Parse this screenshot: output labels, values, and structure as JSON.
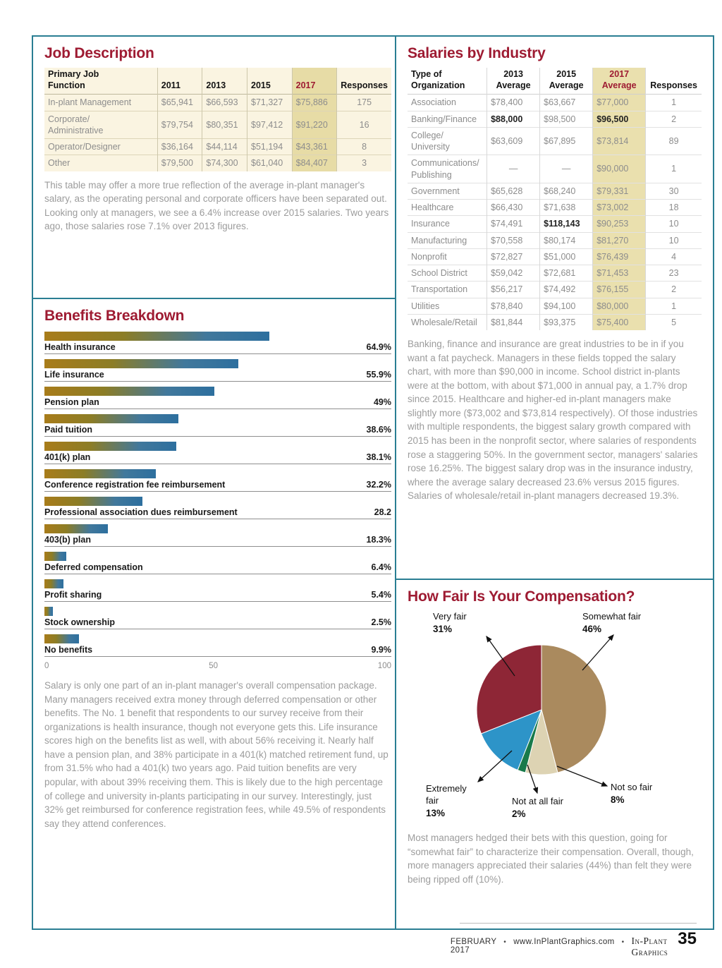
{
  "job_description": {
    "title": "Job Description",
    "table": {
      "headers": [
        "Primary Job\nFunction",
        "2011",
        "2013",
        "2015",
        "2017",
        "Responses"
      ],
      "highlight_column": "2017",
      "rows": [
        {
          "label": "In-plant Management",
          "values": [
            "$65,941",
            "$66,593",
            "$71,327",
            "$75,886",
            "175"
          ],
          "bold": []
        },
        {
          "label": "Corporate/\nAdministrative",
          "values": [
            "$79,754",
            "$80,351",
            "$97,412",
            "$91,220",
            "16"
          ],
          "bold": []
        },
        {
          "label": "Operator/Designer",
          "values": [
            "$36,164",
            "$44,114",
            "$51,194",
            "$43,361",
            "8"
          ],
          "bold": []
        },
        {
          "label": "Other",
          "values": [
            "$79,500",
            "$74,300",
            "$61,040",
            "$84,407",
            "3"
          ],
          "bold": []
        }
      ]
    },
    "caption": "This table may offer a more true reflection of the average in-plant manager's salary, as the operating personal and corporate officers have been separated out. Looking only at managers, we see a 6.4% increase over 2015 salaries. Two years ago, those salaries rose 7.1% over 2013 figures."
  },
  "benefits": {
    "title": "Benefits Breakdown",
    "caption": "Salary is only one part of an in-plant manager's overall compensation package. Many managers received extra money through deferred compensation or other benefits. The No. 1 benefit that respondents to our survey receive from their organizations is health insurance, though not everyone gets this. Life insurance scores high on the benefits list as well, with about 56% receiving it. Nearly half have a pension plan, and 38% participate in a 401(k) matched retirement fund, up from 31.5% who had a 401(k) two years ago. Paid tuition benefits are very popular, with about 39% receiving them. This is likely due to the high percentage of college and university in-plants participating in our survey. Interestingly, just 32% get reimbursed for conference registration fees, while 49.5% of respondents say they attend conferences."
  },
  "salaries": {
    "title": "Salaries by Industry",
    "table": {
      "headers": [
        "Type of\nOrganization",
        "2013\nAverage",
        "2015\nAverage",
        "2017\nAverage",
        "Responses"
      ],
      "highlight_column": "2017 Average",
      "rows": [
        {
          "label": "Association",
          "values": [
            "$78,400",
            "$63,667",
            "$77,000",
            "1"
          ],
          "bold": []
        },
        {
          "label": "Banking/Finance",
          "values": [
            "$88,000",
            "$98,500",
            "$96,500",
            "2"
          ],
          "bold": [
            0,
            2
          ]
        },
        {
          "label": "College/\nUniversity",
          "values": [
            "$63,609",
            "$67,895",
            "$73,814",
            "89"
          ],
          "bold": []
        },
        {
          "label": "Communications/\nPublishing",
          "values": [
            "—",
            "—",
            "$90,000",
            "1"
          ],
          "bold": []
        },
        {
          "label": "Government",
          "values": [
            "$65,628",
            "$68,240",
            "$79,331",
            "30"
          ],
          "bold": []
        },
        {
          "label": "Healthcare",
          "values": [
            "$66,430",
            "$71,638",
            "$73,002",
            "18"
          ],
          "bold": []
        },
        {
          "label": "Insurance",
          "values": [
            "$74,491",
            "$118,143",
            "$90,253",
            "10"
          ],
          "bold": [
            1
          ]
        },
        {
          "label": "Manufacturing",
          "values": [
            "$70,558",
            "$80,174",
            "$81,270",
            "10"
          ],
          "bold": []
        },
        {
          "label": "Nonprofit",
          "values": [
            "$72,827",
            "$51,000",
            "$76,439",
            "4"
          ],
          "bold": []
        },
        {
          "label": "School District",
          "values": [
            "$59,042",
            "$72,681",
            "$71,453",
            "23"
          ],
          "bold": []
        },
        {
          "label": "Transportation",
          "values": [
            "$56,217",
            "$74,492",
            "$76,155",
            "2"
          ],
          "bold": []
        },
        {
          "label": "Utilities",
          "values": [
            "$78,840",
            "$94,100",
            "$80,000",
            "1"
          ],
          "bold": []
        },
        {
          "label": "Wholesale/Retail",
          "values": [
            "$81,844",
            "$93,375",
            "$75,400",
            "5"
          ],
          "bold": []
        }
      ]
    },
    "caption": "Banking, finance and insurance are great industries to be in if you want a fat paycheck. Managers in these fields topped the salary chart, with more than $90,000 in income. School district in-plants were at the bottom, with about $71,000 in annual pay, a 1.7% drop since 2015. Healthcare and higher-ed in-plant managers make slightly more ($73,002 and $73,814 respectively). Of those industries with multiple respondents, the biggest salary growth compared with 2015 has been in the nonprofit sector, where salaries of respondents rose a staggering 50%. In the government sector, managers' salaries rose 16.25%. The biggest salary drop was in the insurance industry, where the average salary decreased 23.6% versus 2015 figures. Salaries of wholesale/retail in-plant managers decreased 19.3%."
  },
  "compensation": {
    "title": "How Fair Is Your Compensation?",
    "callouts": [
      {
        "name": "Very fair",
        "pct": "31%"
      },
      {
        "name": "Somewhat fair",
        "pct": "46%"
      },
      {
        "name": "Extremely fair",
        "pct": "13%"
      },
      {
        "name": "Not at all fair",
        "pct": "2%"
      },
      {
        "name": "Not so fair",
        "pct": "8%"
      }
    ],
    "caption": "Most managers hedged their bets with this question, going for “somewhat fair” to characterize their compensation. Overall, though, more managers appreciated their salaries (44%) than felt they were being ripped off (10%)."
  },
  "chart_data": [
    {
      "type": "bar",
      "orientation": "horizontal",
      "title": "Benefits Breakdown",
      "categories": [
        "Health insurance",
        "Life insurance",
        "Pension plan",
        "Paid tuition",
        "401(k) plan",
        "Conference registration fee reimbursement",
        "Professional association dues reimbursement",
        "403(b) plan",
        "Deferred compensation",
        "Profit sharing",
        "Stock ownership",
        "No benefits"
      ],
      "values": [
        64.9,
        55.9,
        49,
        38.6,
        38.1,
        32.2,
        28.2,
        18.3,
        6.4,
        5.4,
        2.5,
        9.9
      ],
      "value_labels": [
        "64.9%",
        "55.9%",
        "49%",
        "38.6%",
        "38.1%",
        "32.2%",
        "28.2",
        "18.3%",
        "6.4%",
        "5.4%",
        "2.5%",
        "9.9%"
      ],
      "xlim": [
        0,
        100
      ],
      "x_ticks": [
        "0",
        "50",
        "100"
      ]
    },
    {
      "type": "pie",
      "title": "How Fair Is Your Compensation?",
      "labels": [
        "Somewhat fair",
        "Not so fair",
        "Not at all fair",
        "Extremely fair",
        "Very fair"
      ],
      "values": [
        46,
        8,
        2,
        13,
        31
      ],
      "colors": [
        "#aa8a5e",
        "#ddd3b3",
        "#187a4b",
        "#2d94c8",
        "#8e2636"
      ],
      "start_angle": "top",
      "direction": "clockwise"
    }
  ],
  "footer": {
    "date": "FEBRUARY 2017",
    "separator": "•",
    "url": "www.InPlantGraphics.com",
    "brand": "In-Plant Graphics",
    "page_number": "35"
  },
  "colors": {
    "accent_heading": "#9e1b32",
    "panel_border": "#2a7e93",
    "highlight_column_bg": "#eae0ae",
    "job_table_bg": "#faf4e1"
  }
}
